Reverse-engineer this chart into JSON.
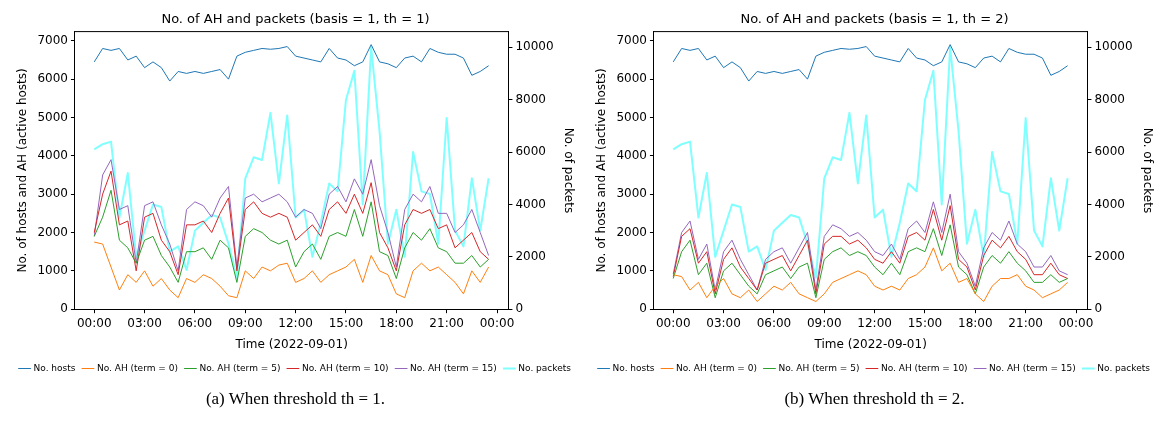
{
  "chart_data": [
    {
      "type": "line",
      "title": "No. of AH and packets (basis = 1, th = 1)",
      "xlabel": "Time (2022-09-01)",
      "ylabel": "No. of hosts and AH (active hosts)",
      "y2label": "No. of packets",
      "x": [
        0,
        0.5,
        1,
        1.5,
        2,
        2.5,
        3,
        3.5,
        4,
        4.5,
        5,
        5.5,
        6,
        6.5,
        7,
        7.5,
        8,
        8.5,
        9,
        9.5,
        10,
        10.5,
        11,
        11.5,
        12,
        12.5,
        13,
        13.5,
        14,
        14.5,
        15,
        15.5,
        16,
        16.5,
        17,
        17.5,
        18,
        18.5,
        19,
        19.5,
        20,
        20.5,
        21,
        21.5,
        22,
        22.5,
        23,
        23.5
      ],
      "xlim": [
        -1.15,
        24.68
      ],
      "xticks": [
        {
          "value": 0,
          "label": "00:00"
        },
        {
          "value": 3,
          "label": "03:00"
        },
        {
          "value": 6,
          "label": "06:00"
        },
        {
          "value": 9,
          "label": "09:00"
        },
        {
          "value": 12,
          "label": "12:00"
        },
        {
          "value": 15,
          "label": "15:00"
        },
        {
          "value": 18,
          "label": "18:00"
        },
        {
          "value": 21,
          "label": "21:00"
        },
        {
          "value": 24,
          "label": "00:00"
        }
      ],
      "ylim": [
        0,
        7240
      ],
      "yticks": [
        0,
        1000,
        2000,
        3000,
        4000,
        5000,
        6000,
        7000
      ],
      "y2lim": [
        0,
        10600
      ],
      "y2ticks": [
        0,
        2000,
        4000,
        6000,
        8000,
        10000
      ],
      "grid": false,
      "legend": "bottom",
      "marker": "none",
      "line_style": "solid",
      "series": [
        {
          "name": "No. hosts",
          "color": "#1f77b4",
          "values": [
            6450,
            6800,
            6750,
            6800,
            6500,
            6600,
            6300,
            6450,
            6300,
            5950,
            6200,
            6150,
            6200,
            6150,
            6200,
            6250,
            6000,
            6600,
            6700,
            6750,
            6800,
            6780,
            6800,
            6850,
            6600,
            6550,
            6500,
            6450,
            6800,
            6550,
            6500,
            6350,
            6450,
            6900,
            6450,
            6400,
            6300,
            6550,
            6600,
            6450,
            6800,
            6700,
            6650,
            6650,
            6550,
            6100,
            6200,
            6350
          ]
        },
        {
          "name": "No. AH (term = 0)",
          "color": "#ff7f0e",
          "values": [
            1750,
            1700,
            1100,
            500,
            900,
            700,
            1000,
            600,
            800,
            500,
            300,
            800,
            700,
            900,
            800,
            600,
            350,
            300,
            1000,
            800,
            1100,
            1000,
            1150,
            1200,
            700,
            800,
            1000,
            700,
            900,
            1000,
            1100,
            1300,
            700,
            1400,
            1000,
            900,
            400,
            300,
            1000,
            1200,
            1000,
            1100,
            900,
            700,
            400,
            1000,
            700,
            1100
          ]
        },
        {
          "name": "No. AH (term = 5)",
          "color": "#2ca02c",
          "values": [
            1900,
            2400,
            3100,
            1800,
            1600,
            1200,
            1800,
            1900,
            1400,
            1100,
            700,
            1500,
            1500,
            1600,
            1300,
            1800,
            1600,
            700,
            1900,
            2100,
            2000,
            1800,
            1700,
            1800,
            1100,
            1500,
            1700,
            1300,
            1900,
            2000,
            1900,
            2600,
            1900,
            2800,
            1500,
            1400,
            800,
            1600,
            2000,
            1800,
            2100,
            1600,
            1500,
            1200,
            1200,
            1400,
            1100,
            1300
          ]
        },
        {
          "name": "No. AH (term = 10)",
          "color": "#d62728",
          "values": [
            2000,
            3000,
            3600,
            2200,
            2300,
            1000,
            2400,
            2500,
            1800,
            1500,
            900,
            2200,
            2200,
            2300,
            2000,
            2500,
            2900,
            1000,
            2600,
            2800,
            2500,
            2400,
            2500,
            2400,
            1800,
            2000,
            2200,
            1900,
            2600,
            2800,
            2500,
            3000,
            2500,
            3300,
            2000,
            1600,
            1000,
            2200,
            2600,
            2500,
            2600,
            2100,
            2200,
            1600,
            1800,
            2000,
            1500,
            1300
          ]
        },
        {
          "name": "No. AH (term = 15)",
          "color": "#9467bd",
          "values": [
            1900,
            3500,
            3900,
            2600,
            2700,
            1200,
            2700,
            2800,
            2200,
            1700,
            1000,
            2600,
            2800,
            2700,
            2400,
            2900,
            3200,
            1100,
            2900,
            3000,
            2800,
            2900,
            3000,
            2800,
            2400,
            2600,
            2500,
            2100,
            3000,
            3200,
            2800,
            3400,
            3000,
            3900,
            2700,
            2000,
            1100,
            2600,
            3000,
            2800,
            3200,
            2500,
            2500,
            2000,
            2200,
            2600,
            2000,
            1400
          ]
        },
        {
          "name": "No. packets",
          "color": "#80ffff",
          "axis": "y2",
          "values": [
            6100,
            6300,
            6400,
            3500,
            5200,
            2000,
            3000,
            4000,
            3900,
            2200,
            2400,
            1500,
            3000,
            3300,
            3600,
            3500,
            2500,
            1200,
            5000,
            5800,
            5700,
            7500,
            4800,
            7400,
            3500,
            3800,
            2000,
            3300,
            4800,
            4500,
            8000,
            9100,
            4000,
            10000,
            6800,
            2500,
            3800,
            2000,
            6000,
            4500,
            4400,
            2500,
            7300,
            3000,
            2400,
            5000,
            3000,
            5000
          ]
        }
      ],
      "annotations": [
        "(a) When threshold th = 1."
      ]
    },
    {
      "type": "line",
      "title": "No. of AH and packets (basis = 1, th = 2)",
      "xlabel": "Time (2022-09-01)",
      "ylabel": "No. of hosts and AH (active hosts)",
      "y2label": "No. of packets",
      "x": [
        0,
        0.5,
        1,
        1.5,
        2,
        2.5,
        3,
        3.5,
        4,
        4.5,
        5,
        5.5,
        6,
        6.5,
        7,
        7.5,
        8,
        8.5,
        9,
        9.5,
        10,
        10.5,
        11,
        11.5,
        12,
        12.5,
        13,
        13.5,
        14,
        14.5,
        15,
        15.5,
        16,
        16.5,
        17,
        17.5,
        18,
        18.5,
        19,
        19.5,
        20,
        20.5,
        21,
        21.5,
        22,
        22.5,
        23,
        23.5
      ],
      "xlim": [
        -1.15,
        24.68
      ],
      "xticks": [
        {
          "value": 0,
          "label": "00:00"
        },
        {
          "value": 3,
          "label": "03:00"
        },
        {
          "value": 6,
          "label": "06:00"
        },
        {
          "value": 9,
          "label": "09:00"
        },
        {
          "value": 12,
          "label": "12:00"
        },
        {
          "value": 15,
          "label": "15:00"
        },
        {
          "value": 18,
          "label": "18:00"
        },
        {
          "value": 21,
          "label": "21:00"
        },
        {
          "value": 24,
          "label": "00:00"
        }
      ],
      "ylim": [
        0,
        7240
      ],
      "yticks": [
        0,
        1000,
        2000,
        3000,
        4000,
        5000,
        6000,
        7000
      ],
      "y2lim": [
        0,
        10600
      ],
      "y2ticks": [
        0,
        2000,
        4000,
        6000,
        8000,
        10000
      ],
      "grid": false,
      "legend": "bottom",
      "marker": "none",
      "line_style": "solid",
      "series": [
        {
          "name": "No. hosts",
          "color": "#1f77b4",
          "values": [
            6450,
            6800,
            6750,
            6800,
            6500,
            6600,
            6300,
            6450,
            6300,
            5950,
            6200,
            6150,
            6200,
            6150,
            6200,
            6250,
            6000,
            6600,
            6700,
            6750,
            6800,
            6780,
            6800,
            6850,
            6600,
            6550,
            6500,
            6450,
            6800,
            6550,
            6500,
            6350,
            6450,
            6900,
            6450,
            6400,
            6300,
            6550,
            6600,
            6450,
            6800,
            6700,
            6650,
            6650,
            6550,
            6100,
            6200,
            6350
          ]
        },
        {
          "name": "No. AH (term = 0)",
          "color": "#ff7f0e",
          "values": [
            900,
            850,
            500,
            700,
            300,
            600,
            800,
            400,
            300,
            500,
            200,
            400,
            600,
            500,
            700,
            400,
            300,
            200,
            400,
            700,
            800,
            900,
            1000,
            900,
            600,
            500,
            600,
            500,
            800,
            900,
            1100,
            1600,
            1000,
            1200,
            700,
            800,
            400,
            200,
            600,
            800,
            800,
            900,
            600,
            500,
            300,
            400,
            500,
            700
          ]
        },
        {
          "name": "No. AH (term = 5)",
          "color": "#2ca02c",
          "values": [
            800,
            1500,
            1800,
            900,
            1200,
            300,
            1000,
            1200,
            900,
            600,
            400,
            900,
            1000,
            1100,
            800,
            1100,
            1200,
            300,
            1300,
            1500,
            1600,
            1400,
            1500,
            1400,
            1100,
            900,
            1200,
            900,
            1500,
            1600,
            1500,
            2100,
            1400,
            2200,
            1100,
            900,
            400,
            1100,
            1400,
            1200,
            1500,
            1200,
            1000,
            700,
            700,
            900,
            700,
            800
          ]
        },
        {
          "name": "No. AH (term = 10)",
          "color": "#d62728",
          "values": [
            850,
            1900,
            2100,
            1200,
            1500,
            400,
            1300,
            1600,
            1100,
            800,
            500,
            1200,
            1300,
            1400,
            1000,
            1400,
            1800,
            400,
            1700,
            1900,
            1900,
            1700,
            1800,
            1600,
            1300,
            1200,
            1500,
            1200,
            1900,
            2000,
            1800,
            2600,
            1800,
            2700,
            1300,
            1100,
            500,
            1400,
            1800,
            1600,
            1900,
            1500,
            1300,
            900,
            900,
            1200,
            900,
            800
          ]
        },
        {
          "name": "No. AH (term = 15)",
          "color": "#9467bd",
          "values": [
            920,
            2000,
            2300,
            1300,
            1700,
            500,
            1500,
            1800,
            1300,
            900,
            500,
            1300,
            1500,
            1600,
            1200,
            1600,
            2000,
            500,
            1900,
            2200,
            2100,
            1900,
            2000,
            1800,
            1500,
            1400,
            1700,
            1300,
            2100,
            2300,
            2000,
            2800,
            2000,
            3000,
            1500,
            1200,
            600,
            1600,
            2000,
            1800,
            2300,
            1700,
            1500,
            1100,
            1100,
            1400,
            1000,
            900
          ]
        },
        {
          "name": "No. packets",
          "color": "#80ffff",
          "axis": "y2",
          "values": [
            6100,
            6300,
            6400,
            3500,
            5200,
            2000,
            3000,
            4000,
            3900,
            2200,
            2400,
            1500,
            3000,
            3300,
            3600,
            3500,
            2500,
            1200,
            5000,
            5800,
            5700,
            7500,
            4800,
            7400,
            3500,
            3800,
            2000,
            3300,
            4800,
            4500,
            8000,
            9100,
            4000,
            10000,
            6800,
            2500,
            3800,
            2000,
            6000,
            4500,
            4400,
            2500,
            7300,
            3000,
            2400,
            5000,
            3000,
            5000
          ]
        }
      ],
      "annotations": [
        "(b) When threshold th = 2."
      ]
    }
  ]
}
